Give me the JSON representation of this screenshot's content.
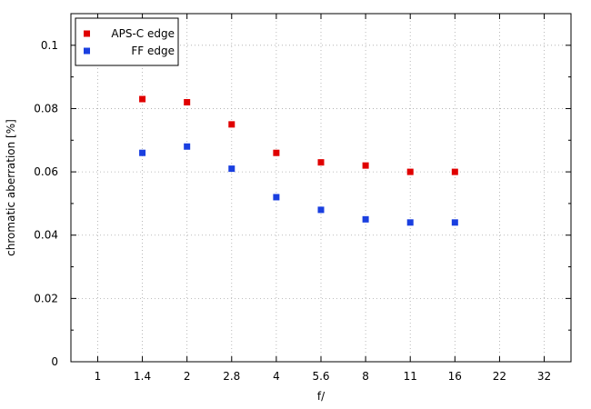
{
  "chart_data": {
    "type": "scatter",
    "title": "",
    "xlabel": "f/",
    "ylabel": "chromatic  aberration [%]",
    "x_categories": [
      "1",
      "1.4",
      "2",
      "2.8",
      "4",
      "5.6",
      "8",
      "11",
      "16",
      "22",
      "32"
    ],
    "ylim": [
      0,
      0.11
    ],
    "y_ticks": [
      0,
      0.02,
      0.04,
      0.06,
      0.08,
      0.1
    ],
    "y_tick_labels": [
      "0",
      "0.02",
      "0.04",
      "0.06",
      "0.08",
      "0.1"
    ],
    "grid": true,
    "legend_position": "top-left",
    "series": [
      {
        "name": "APS-C edge",
        "color": "#e00000",
        "marker": "square",
        "x": [
          "1.4",
          "2",
          "2.8",
          "4",
          "5.6",
          "8",
          "11",
          "16"
        ],
        "y": [
          0.083,
          0.082,
          0.075,
          0.066,
          0.063,
          0.062,
          0.06,
          0.06
        ]
      },
      {
        "name": "FF edge",
        "color": "#1a3fe0",
        "marker": "square",
        "x": [
          "1.4",
          "2",
          "2.8",
          "4",
          "5.6",
          "8",
          "11",
          "16"
        ],
        "y": [
          0.066,
          0.068,
          0.061,
          0.052,
          0.048,
          0.045,
          0.044,
          0.044
        ]
      }
    ]
  }
}
